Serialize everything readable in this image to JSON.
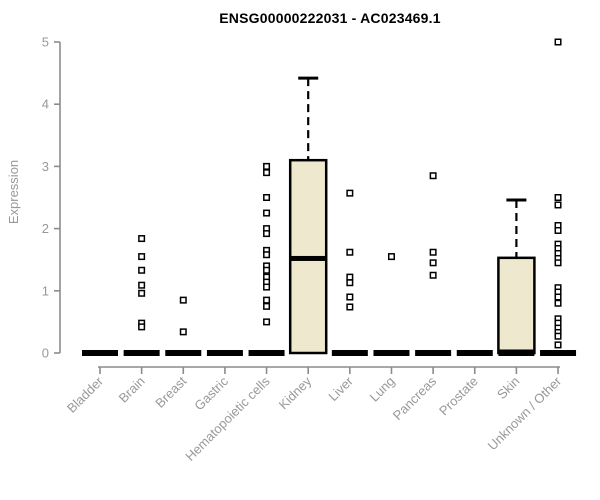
{
  "title": "ENSG00000222031 - AC023469.1",
  "chart_data": {
    "type": "boxplot",
    "title": "ENSG00000222031 - AC023469.1",
    "ylabel": "Expression",
    "xlabel": "",
    "ylim": [
      0,
      5
    ],
    "yticks": [
      0,
      1,
      2,
      3,
      4,
      5
    ],
    "grid": false,
    "legend": false,
    "categories": [
      "Bladder",
      "Brain",
      "Breast",
      "Gastric",
      "Hematopoietic cells",
      "Kidney",
      "Liver",
      "Lung",
      "Pancreas",
      "Prostate",
      "Skin",
      "Unknown / Other"
    ],
    "boxes": [
      {
        "category": "Bladder",
        "q1": 0,
        "median": 0,
        "q3": 0,
        "whisker_high": 0,
        "outliers": []
      },
      {
        "category": "Brain",
        "q1": 0,
        "median": 0,
        "q3": 0,
        "whisker_high": 0,
        "outliers": [
          1.84,
          1.55,
          1.33,
          1.09,
          0.96,
          0.48,
          0.42
        ]
      },
      {
        "category": "Breast",
        "q1": 0,
        "median": 0,
        "q3": 0,
        "whisker_high": 0,
        "outliers": [
          0.85,
          0.34
        ]
      },
      {
        "category": "Gastric",
        "q1": 0,
        "median": 0,
        "q3": 0,
        "whisker_high": 0,
        "outliers": []
      },
      {
        "category": "Hematopoietic cells",
        "q1": 0,
        "median": 0,
        "q3": 0,
        "whisker_high": 0,
        "outliers": [
          3.0,
          2.9,
          2.5,
          2.25,
          2.0,
          1.92,
          1.65,
          1.58,
          1.4,
          1.33,
          1.22,
          1.14,
          1.06,
          0.85,
          0.75,
          0.5
        ]
      },
      {
        "category": "Kidney",
        "q1": 0,
        "median": 1.52,
        "q3": 3.1,
        "whisker_high": 4.42,
        "outliers": []
      },
      {
        "category": "Liver",
        "q1": 0,
        "median": 0,
        "q3": 0,
        "whisker_high": 0,
        "outliers": [
          2.57,
          1.62,
          1.22,
          1.13,
          0.9,
          0.74
        ]
      },
      {
        "category": "Lung",
        "q1": 0,
        "median": 0,
        "q3": 0,
        "whisker_high": 0,
        "outliers": [
          1.55
        ]
      },
      {
        "category": "Pancreas",
        "q1": 0,
        "median": 0,
        "q3": 0,
        "whisker_high": 0,
        "outliers": [
          2.85,
          1.62,
          1.45,
          1.25
        ]
      },
      {
        "category": "Prostate",
        "q1": 0,
        "median": 0,
        "q3": 0,
        "whisker_high": 0,
        "outliers": []
      },
      {
        "category": "Skin",
        "q1": 0,
        "median": 0,
        "q3": 1.53,
        "whisker_high": 2.46,
        "outliers": []
      },
      {
        "category": "Unknown / Other",
        "q1": 0,
        "median": 0,
        "q3": 0,
        "whisker_high": 0,
        "outliers": [
          5.0,
          2.5,
          2.38,
          2.05,
          1.97,
          1.75,
          1.68,
          1.6,
          1.52,
          1.45,
          1.05,
          0.98,
          0.9,
          0.8,
          0.55,
          0.48,
          0.4,
          0.33,
          0.27,
          0.13
        ]
      }
    ],
    "colors": {
      "box_fill": "#EDE8CE",
      "box_stroke": "#000000",
      "median": "#000000",
      "outlier_fill": "#FFFFFF",
      "outlier_stroke": "#000000",
      "axis_line": "#8C8C8C",
      "tick_label": "#999999",
      "title": "#000000",
      "background": "#FFFFFF"
    }
  }
}
